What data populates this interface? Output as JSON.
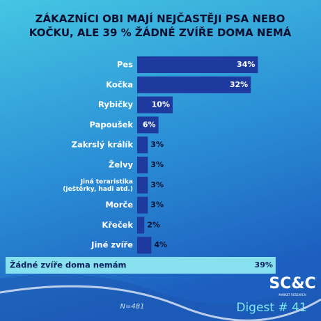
{
  "chart_data": {
    "type": "bar",
    "orientation": "horizontal",
    "title": "ZÁKAZNÍCI OBI MAJÍ NEJČASTĚJI PSA NEBO KOČKU, ALE 39 % ŽÁDNÉ ZVÍŘE DOMA NEMÁ",
    "categories": [
      "Pes",
      "Kočka",
      "Rybičky",
      "Papoušek",
      "Zakrslý králík",
      "Želvy",
      "Jiná teraristika\n(ještěrky, hadi atd.)",
      "Morče",
      "Křeček",
      "Jiné zvíře",
      "Žádné zvíře doma nemám"
    ],
    "values": [
      34,
      32,
      10,
      6,
      3,
      3,
      3,
      3,
      2,
      4,
      39
    ],
    "value_labels": [
      "34%",
      "32%",
      "10%",
      "6%",
      "3%",
      "3%",
      "3%",
      "3%",
      "2%",
      "4%",
      "39%"
    ],
    "bar_colors": [
      "#1e3a9e",
      "#1e3a9e",
      "#1e3a9e",
      "#1e3a9e",
      "#1e3a9e",
      "#1e3a9e",
      "#1e3a9e",
      "#1e3a9e",
      "#1e3a9e",
      "#1e3a9e",
      "#86e0ee"
    ],
    "footnote": "N=481",
    "logo": "SC&C",
    "logo_tagline": "MARKET RESEARCH",
    "issue": "Digest # 41"
  }
}
